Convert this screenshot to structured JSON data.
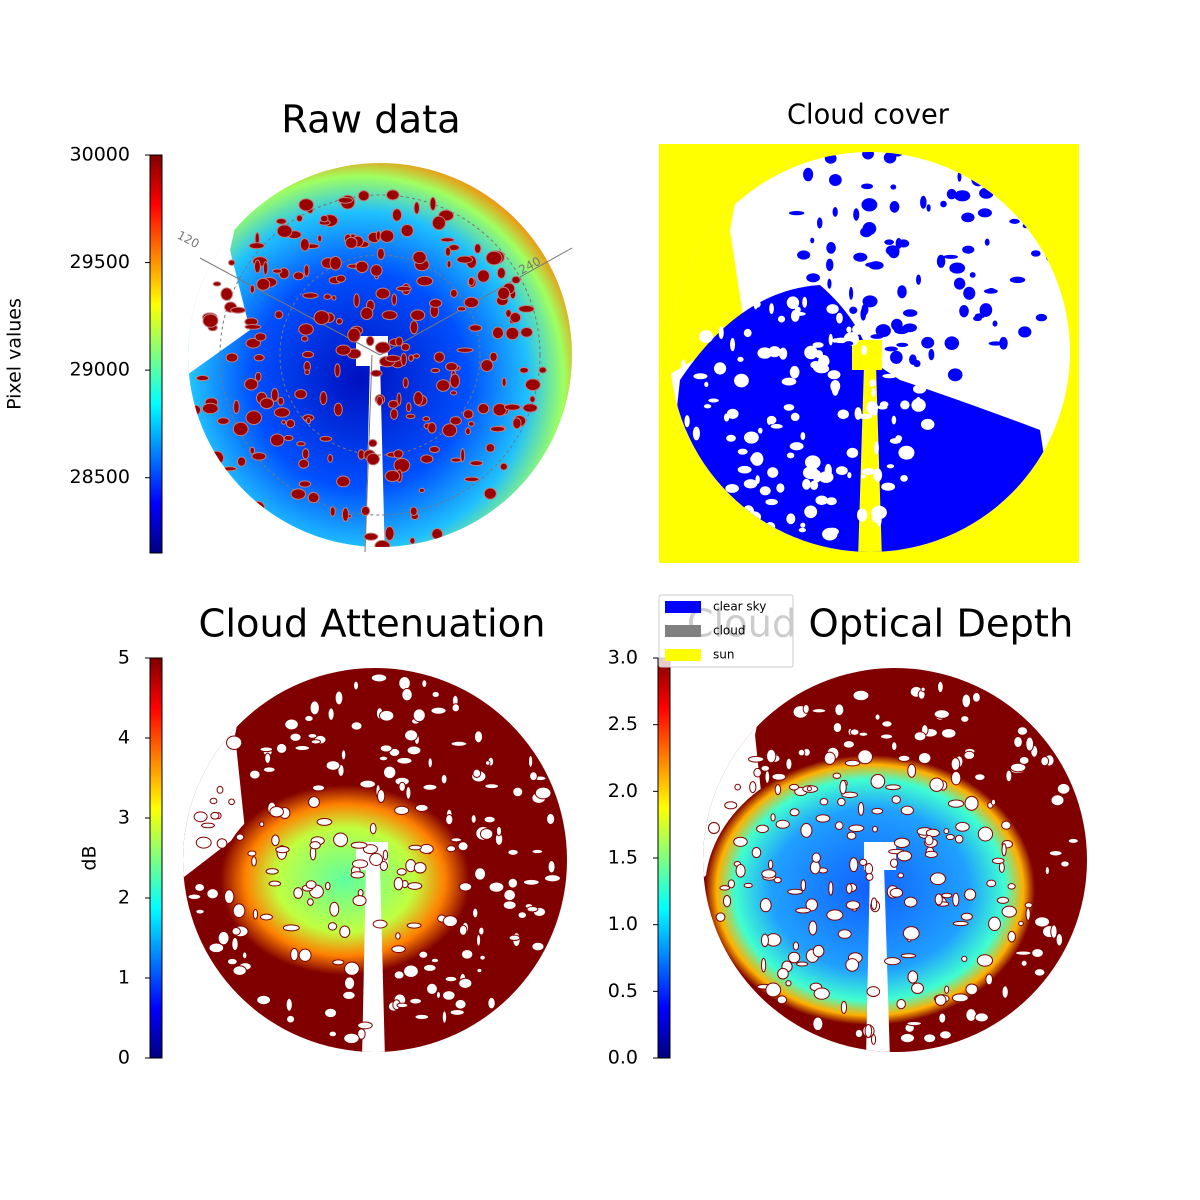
{
  "chart_data": [
    {
      "type": "heatmap",
      "title": "Raw data",
      "colorbar_label": "Pixel values",
      "cmap": "jet",
      "clim": [
        28150,
        30000
      ],
      "cticks": [
        28500,
        29000,
        29500,
        30000
      ],
      "annotations": [
        "120",
        "240"
      ]
    },
    {
      "type": "classmap",
      "title": "Cloud cover",
      "series": [
        {
          "name": "clear sky",
          "color": "#0000ff"
        },
        {
          "name": "cloud",
          "color": "#808080"
        },
        {
          "name": "sun",
          "color": "#ffff00"
        }
      ]
    },
    {
      "type": "heatmap",
      "title": "Cloud Attenuation",
      "colorbar_label": "dB",
      "cmap": "jet",
      "clim": [
        0,
        5
      ],
      "cticks": [
        0,
        1,
        2,
        3,
        4,
        5
      ]
    },
    {
      "type": "heatmap",
      "title": "Cloud Optical Depth",
      "cmap": "jet",
      "clim": [
        0,
        3
      ],
      "cticks": [
        {
          "value": 0,
          "label": "0.0"
        },
        0.5,
        {
          "value": 1,
          "label": "1.0"
        },
        1.5,
        {
          "value": 2,
          "label": "2.0"
        },
        2.5,
        {
          "value": 3,
          "label": "3.0"
        }
      ]
    }
  ]
}
